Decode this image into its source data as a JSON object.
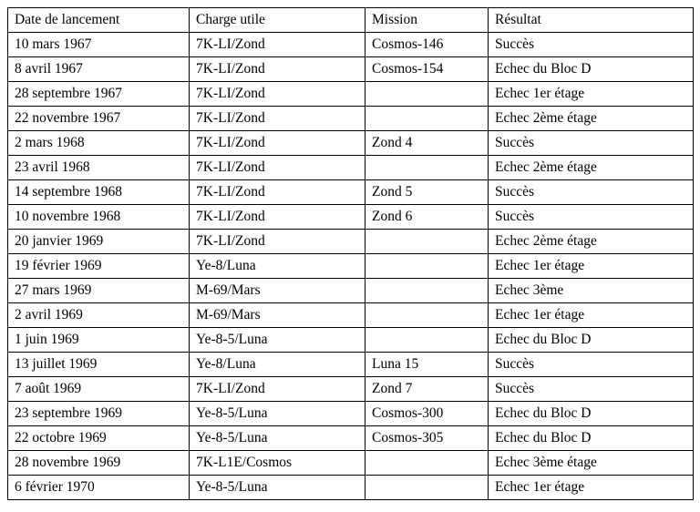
{
  "table": {
    "headers": [
      "Date de lancement",
      "Charge utile",
      "Mission",
      "Résultat"
    ],
    "rows": [
      [
        "10 mars 1967",
        "7K-LI/Zond",
        "Cosmos-146",
        "Succès"
      ],
      [
        "8 avril 1967",
        "7K-LI/Zond",
        "Cosmos-154",
        "Echec du Bloc D"
      ],
      [
        "28 septembre 1967",
        "7K-LI/Zond",
        "",
        "Echec 1er étage"
      ],
      [
        "22 novembre 1967",
        "7K-LI/Zond",
        "",
        "Echec 2ème étage"
      ],
      [
        "2 mars 1968",
        "7K-LI/Zond",
        "Zond 4",
        "Succès"
      ],
      [
        "23 avril 1968",
        "7K-LI/Zond",
        "",
        "Echec 2ème étage"
      ],
      [
        "14 septembre 1968",
        "7K-LI/Zond",
        "Zond 5",
        "Succès"
      ],
      [
        "10 novembre 1968",
        "7K-LI/Zond",
        "Zond 6",
        "Succès"
      ],
      [
        "20 janvier 1969",
        "7K-LI/Zond",
        "",
        "Echec 2ème étage"
      ],
      [
        "19 février 1969",
        "Ye-8/Luna",
        "",
        "Echec 1er étage"
      ],
      [
        "27 mars 1969",
        "M-69/Mars",
        "",
        "Echec 3ème"
      ],
      [
        "2 avril 1969",
        "M-69/Mars",
        "",
        "Echec 1er étage"
      ],
      [
        "1 juin 1969",
        "Ye-8-5/Luna",
        "",
        "Echec du Bloc D"
      ],
      [
        "13 juillet 1969",
        "Ye-8/Luna",
        "Luna 15",
        "Succès"
      ],
      [
        "7 août 1969",
        "7K-LI/Zond",
        "Zond 7",
        "Succès"
      ],
      [
        "23 septembre 1969",
        "Ye-8-5/Luna",
        "Cosmos-300",
        "Echec du Bloc D"
      ],
      [
        "22 octobre 1969",
        "Ye-8-5/Luna",
        "Cosmos-305",
        "Echec du Bloc D"
      ],
      [
        "28 novembre 1969",
        "7K-L1E/Cosmos",
        "",
        "Echec 3ème étage"
      ],
      [
        "6 février 1970",
        "Ye-8-5/Luna",
        "",
        "Echec 1er étage"
      ]
    ]
  }
}
